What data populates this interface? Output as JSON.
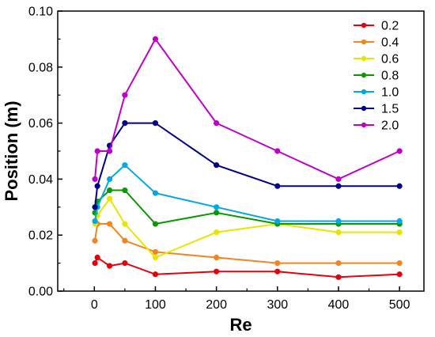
{
  "chart_data": {
    "type": "line",
    "xlabel": "Re",
    "ylabel": "Position (m)",
    "xlim": [
      -60,
      540
    ],
    "ylim": [
      0.0,
      0.1
    ],
    "x_ticks": [
      0,
      100,
      200,
      300,
      400,
      500
    ],
    "x_tick_labels": [
      "0",
      "100",
      "200",
      "300",
      "400",
      "500"
    ],
    "y_ticks": [
      0.0,
      0.02,
      0.04,
      0.06,
      0.08,
      0.1
    ],
    "y_tick_labels": [
      "0.00",
      "0.02",
      "0.04",
      "0.06",
      "0.08",
      "0.10"
    ],
    "legend_position": "top-right",
    "grid": false,
    "x": [
      1,
      5,
      25,
      50,
      100,
      200,
      300,
      400,
      500
    ],
    "series": [
      {
        "name": "0.2",
        "color": "#e8000b",
        "values": [
          0.01,
          0.012,
          0.009,
          0.01,
          0.006,
          0.007,
          0.007,
          0.005,
          0.006
        ]
      },
      {
        "name": "0.4",
        "color": "#f28522",
        "values": [
          0.018,
          0.024,
          0.024,
          0.018,
          0.014,
          0.012,
          0.01,
          0.01,
          0.01
        ]
      },
      {
        "name": "0.6",
        "color": "#e6e600",
        "values": [
          0.024,
          0.027,
          0.033,
          0.024,
          0.012,
          0.021,
          0.024,
          0.021,
          0.021
        ]
      },
      {
        "name": "0.8",
        "color": "#0a9a00",
        "values": [
          0.028,
          0.032,
          0.036,
          0.036,
          0.024,
          0.028,
          0.024,
          0.024,
          0.024
        ]
      },
      {
        "name": "1.0",
        "color": "#00a8e8",
        "values": [
          0.025,
          0.03,
          0.04,
          0.045,
          0.035,
          0.03,
          0.025,
          0.025,
          0.025
        ]
      },
      {
        "name": "1.5",
        "color": "#00008b",
        "values": [
          0.03,
          0.0375,
          0.052,
          0.06,
          0.06,
          0.045,
          0.0375,
          0.0375,
          0.0375
        ]
      },
      {
        "name": "2.0",
        "color": "#c000c8",
        "values": [
          0.04,
          0.05,
          0.05,
          0.07,
          0.09,
          0.06,
          0.05,
          0.04,
          0.05
        ]
      }
    ]
  }
}
